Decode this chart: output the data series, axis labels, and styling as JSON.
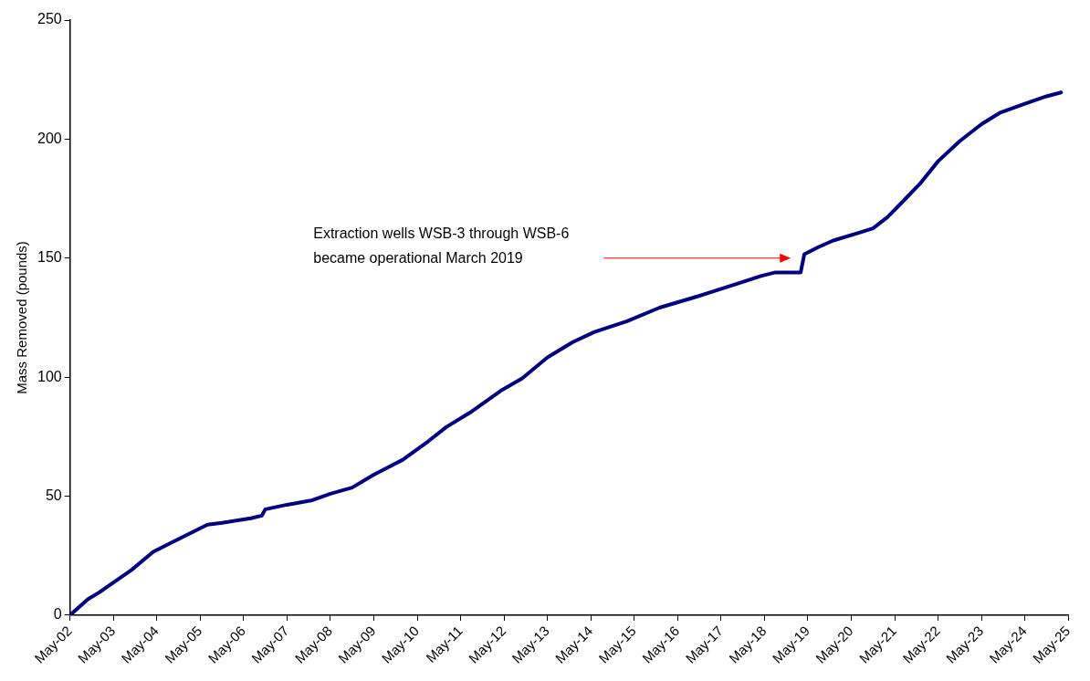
{
  "chart_data": {
    "type": "line",
    "ylabel": "Mass Removed (pounds)",
    "grid": false,
    "legend": false,
    "marker": "none",
    "line_style": "solid",
    "x": [
      "2002-05",
      "2002-10",
      "2003-01",
      "2003-05",
      "2003-10",
      "2004-04",
      "2004-10",
      "2005-07",
      "2005-11",
      "2006-07",
      "2006-10",
      "2006-11",
      "2007-05",
      "2007-12",
      "2008-05",
      "2008-11",
      "2009-05",
      "2010-01",
      "2010-08",
      "2011-01",
      "2011-08",
      "2012-04",
      "2012-10",
      "2013-05",
      "2013-12",
      "2014-06",
      "2015-03",
      "2015-12",
      "2016-10",
      "2017-09",
      "2018-04",
      "2018-08",
      "2019-03",
      "2019-04",
      "2019-08",
      "2019-12",
      "2020-07",
      "2020-11",
      "2021-03",
      "2021-07",
      "2021-12",
      "2022-05",
      "2022-11",
      "2023-05",
      "2023-10",
      "2024-05",
      "2024-11",
      "2025-03"
    ],
    "series": [
      {
        "color": "#000080",
        "values": [
          0,
          6.8,
          9.5,
          13.7,
          19,
          26.6,
          31.2,
          38,
          38.8,
          40.7,
          41.8,
          44.5,
          46.4,
          48.3,
          51,
          53.6,
          59,
          65.3,
          73,
          79,
          85.5,
          94.2,
          99.5,
          108.3,
          114.7,
          119,
          123.5,
          129.2,
          133.7,
          139,
          142.5,
          144,
          144,
          151.6,
          154.7,
          157.4,
          160.6,
          162.5,
          167.2,
          173.4,
          181.3,
          190.7,
          199.2,
          206.3,
          211,
          214.9,
          218,
          219.6
        ]
      }
    ],
    "xlim": [
      "2002-05",
      "2025-05"
    ],
    "xticks": [
      {
        "value": "2002-05",
        "label": "May-02"
      },
      {
        "value": "2003-05",
        "label": "May-03"
      },
      {
        "value": "2004-05",
        "label": "May-04"
      },
      {
        "value": "2005-05",
        "label": "May-05"
      },
      {
        "value": "2006-05",
        "label": "May-06"
      },
      {
        "value": "2007-05",
        "label": "May-07"
      },
      {
        "value": "2008-05",
        "label": "May-08"
      },
      {
        "value": "2009-05",
        "label": "May-09"
      },
      {
        "value": "2010-05",
        "label": "May-10"
      },
      {
        "value": "2011-05",
        "label": "May-11"
      },
      {
        "value": "2012-05",
        "label": "May-12"
      },
      {
        "value": "2013-05",
        "label": "May-13"
      },
      {
        "value": "2014-05",
        "label": "May-14"
      },
      {
        "value": "2015-05",
        "label": "May-15"
      },
      {
        "value": "2016-05",
        "label": "May-16"
      },
      {
        "value": "2017-05",
        "label": "May-17"
      },
      {
        "value": "2018-05",
        "label": "May-18"
      },
      {
        "value": "2019-05",
        "label": "May-19"
      },
      {
        "value": "2020-05",
        "label": "May-20"
      },
      {
        "value": "2021-05",
        "label": "May-21"
      },
      {
        "value": "2022-05",
        "label": "May-22"
      },
      {
        "value": "2023-05",
        "label": "May-23"
      },
      {
        "value": "2024-05",
        "label": "May-24"
      },
      {
        "value": "2025-05",
        "label": "May-25"
      }
    ],
    "ylim": [
      0,
      250
    ],
    "yticks": [
      0,
      50,
      100,
      150,
      200,
      250
    ],
    "annotations": [
      "Extraction wells WSB-3 through WSB-6 became operational March 2019"
    ]
  }
}
